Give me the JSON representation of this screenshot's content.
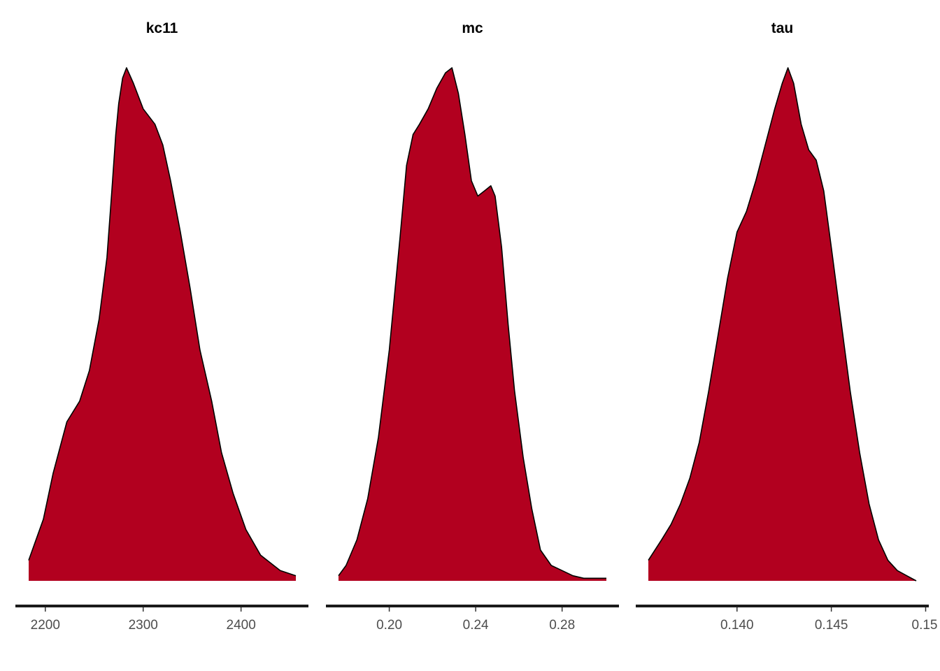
{
  "chart_data": [
    {
      "type": "area",
      "title": "kc11",
      "xlabel": "",
      "ylabel": "",
      "xlim": [
        2183,
        2456
      ],
      "ticks": [
        2200,
        2300,
        2400
      ],
      "tick_labels": [
        "2200",
        "2300",
        "2400"
      ],
      "x": [
        2183,
        2198,
        2208,
        2222,
        2235,
        2245,
        2255,
        2263,
        2268,
        2272,
        2275,
        2279,
        2283,
        2290,
        2300,
        2312,
        2320,
        2328,
        2338,
        2348,
        2358,
        2370,
        2380,
        2392,
        2405,
        2420,
        2440,
        2456
      ],
      "density": [
        0.04,
        0.12,
        0.21,
        0.31,
        0.35,
        0.41,
        0.51,
        0.63,
        0.76,
        0.87,
        0.93,
        0.98,
        1.0,
        0.97,
        0.92,
        0.89,
        0.85,
        0.78,
        0.68,
        0.57,
        0.45,
        0.35,
        0.25,
        0.17,
        0.1,
        0.05,
        0.02,
        0.01
      ],
      "fill_color": "#b2001f",
      "outline_color": "#000000",
      "y_axis_shown": false,
      "grid": false
    },
    {
      "type": "area",
      "title": "mc",
      "xlabel": "",
      "ylabel": "",
      "xlim": [
        0.1765,
        0.3005
      ],
      "ticks": [
        0.2,
        0.24,
        0.28
      ],
      "tick_labels": [
        "0.20",
        "0.24",
        "0.28"
      ],
      "x": [
        0.1765,
        0.18,
        0.185,
        0.19,
        0.195,
        0.2,
        0.205,
        0.208,
        0.211,
        0.214,
        0.218,
        0.222,
        0.226,
        0.229,
        0.232,
        0.235,
        0.238,
        0.241,
        0.244,
        0.247,
        0.249,
        0.252,
        0.255,
        0.258,
        0.262,
        0.266,
        0.27,
        0.275,
        0.28,
        0.285,
        0.29,
        0.295,
        0.3005
      ],
      "density": [
        0.01,
        0.03,
        0.08,
        0.16,
        0.28,
        0.45,
        0.67,
        0.81,
        0.87,
        0.89,
        0.92,
        0.96,
        0.99,
        1.0,
        0.95,
        0.87,
        0.78,
        0.75,
        0.76,
        0.77,
        0.75,
        0.65,
        0.5,
        0.37,
        0.24,
        0.14,
        0.06,
        0.03,
        0.02,
        0.01,
        0.005,
        0.005,
        0.005
      ],
      "fill_color": "#b2001f",
      "outline_color": "#000000",
      "y_axis_shown": false,
      "grid": false
    },
    {
      "type": "area",
      "title": "tau",
      "xlabel": "",
      "ylabel": "",
      "xlim": [
        0.1353,
        0.1495
      ],
      "ticks": [
        0.14,
        0.145,
        0.15
      ],
      "tick_labels": [
        "0.140",
        "0.145",
        "0.15"
      ],
      "x": [
        0.1353,
        0.136,
        0.1365,
        0.137,
        0.1375,
        0.138,
        0.1385,
        0.139,
        0.1395,
        0.14,
        0.1405,
        0.141,
        0.1415,
        0.142,
        0.1424,
        0.1427,
        0.143,
        0.1434,
        0.1438,
        0.1442,
        0.1446,
        0.145,
        0.1455,
        0.146,
        0.1465,
        0.147,
        0.1475,
        0.148,
        0.1485,
        0.149,
        0.1495
      ],
      "density": [
        0.04,
        0.08,
        0.11,
        0.15,
        0.2,
        0.27,
        0.37,
        0.48,
        0.59,
        0.68,
        0.72,
        0.78,
        0.85,
        0.92,
        0.97,
        1.0,
        0.97,
        0.89,
        0.84,
        0.82,
        0.76,
        0.65,
        0.51,
        0.37,
        0.25,
        0.15,
        0.08,
        0.04,
        0.02,
        0.01,
        0.0
      ],
      "fill_color": "#b2001f",
      "outline_color": "#000000",
      "y_axis_shown": false,
      "grid": false
    }
  ]
}
